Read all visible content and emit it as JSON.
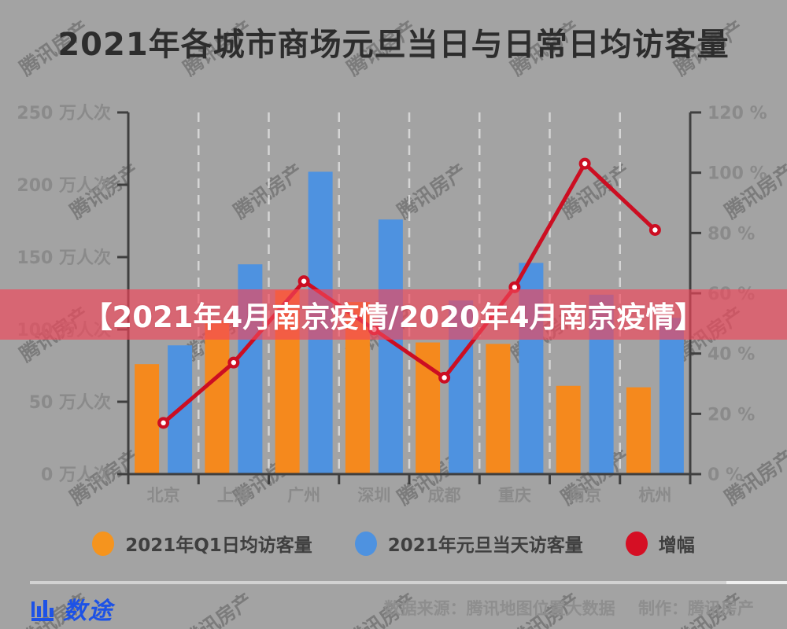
{
  "title": "2021年各城市商场元旦当日与日常日均访客量",
  "banner": {
    "text": "【2021年4月南京疫情/2020年4月南京疫情】"
  },
  "watermark": {
    "text": "腾讯房产"
  },
  "chart_data": {
    "type": "bar",
    "subtype": "grouped bars with overlay line (dual axis)",
    "categories": [
      "北京",
      "上海",
      "广州",
      "深圳",
      "成都",
      "重庆",
      "南京",
      "杭州"
    ],
    "series": [
      {
        "name": "2021年Q1日均访客量",
        "type": "bar",
        "axis": "left",
        "unit": "万人次",
        "color": "#F5891D",
        "values": [
          76,
          106,
          127,
          119,
          91,
          90,
          61,
          60
        ]
      },
      {
        "name": "2021年元旦当天访客量",
        "type": "bar",
        "axis": "left",
        "unit": "万人次",
        "color": "#4E92E0",
        "values": [
          89,
          145,
          209,
          176,
          120,
          146,
          124,
          108
        ]
      },
      {
        "name": "增幅",
        "type": "line",
        "axis": "right",
        "unit": "%",
        "color": "#CC0E22",
        "values": [
          17,
          37,
          64,
          48,
          32,
          62,
          103,
          81
        ]
      }
    ],
    "y_left_axis": {
      "max": 250,
      "step": 50,
      "tick_labels": [
        "0 万人次",
        "50 万人次",
        "100 万人次",
        "150 万人次",
        "200 万人次",
        "250 万人次"
      ]
    },
    "y_right_axis": {
      "max": 120,
      "step": 20,
      "tick_labels": [
        "0 %",
        "20 %",
        "40 %",
        "60 %",
        "80 %",
        "100 %",
        "120 %"
      ]
    },
    "grid": "vertical dashed separators between categories",
    "legend_position": "bottom"
  },
  "legend": {
    "items": [
      {
        "label": "2021年Q1日均访客量",
        "color": "#F5941E"
      },
      {
        "label": "2021年元旦当天访客量",
        "color": "#4E92E0"
      },
      {
        "label": "增幅",
        "color": "#D50F24"
      }
    ]
  },
  "footer": {
    "logo_text": "数途",
    "source_text": "数据来源：腾讯地图位置大数据",
    "maker_text": "制作：腾讯房产"
  },
  "colors": {
    "background": "#A3A3A3",
    "title": "#2D2D2D",
    "axis_line": "#3F3F3F",
    "tick_label": "#8A8A8A",
    "gridline": "#DEDEDE",
    "bar_q1": "#F5891D",
    "bar_newyear": "#4E92E0",
    "growth_line": "#CC0E22",
    "banner_overlay": "rgba(242,70,90,0.66)",
    "legend_text": "#3F3F3F",
    "logo_blue": "#1D52E6",
    "footer_text": "#8E8E8E"
  }
}
